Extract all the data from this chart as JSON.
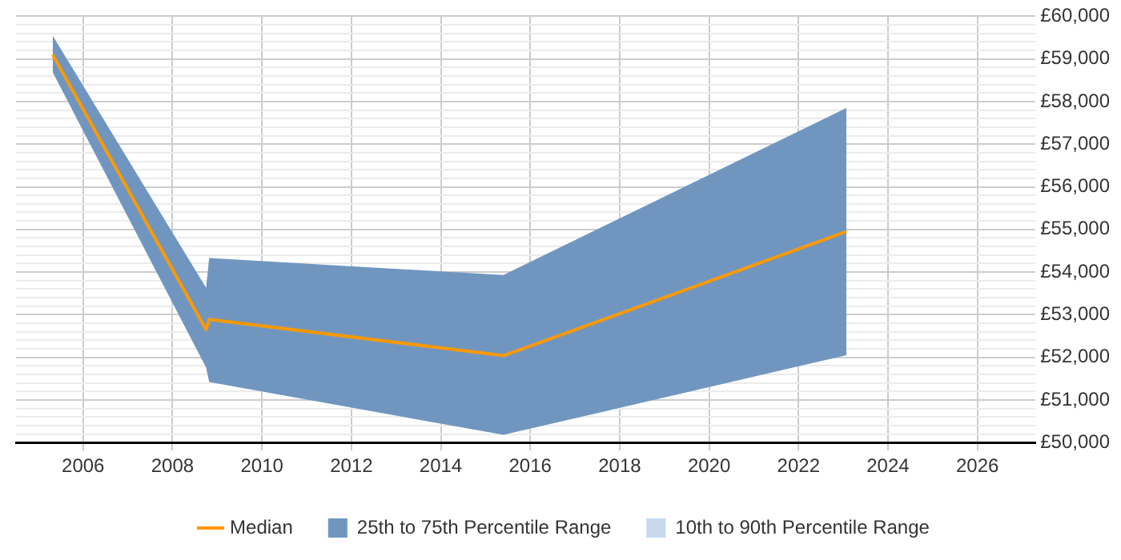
{
  "chart_data": {
    "type": "line",
    "x": [
      2005.32,
      2008.75,
      2008.82,
      2015.4,
      2023.07
    ],
    "series": [
      {
        "name": "Median",
        "color": "#ff9900",
        "values": [
          59100,
          52650,
          52890,
          52040,
          54950
        ]
      },
      {
        "name": "25th to 75th Percentile Range",
        "type": "area",
        "color": "#7096c0",
        "values": [
          null,
          null,
          null,
          null,
          null
        ],
        "lower": [
          58690,
          51760,
          51420,
          50180,
          52050
        ],
        "upper": [
          59550,
          53630,
          54330,
          53930,
          57850
        ]
      },
      {
        "name": "10th to 90th Percentile Range",
        "type": "area",
        "color": "#c6d7ee",
        "values": [
          null,
          null,
          null,
          null,
          null
        ],
        "lower": [
          null,
          null,
          null,
          null,
          null
        ],
        "upper": [
          null,
          null,
          null,
          null,
          null
        ]
      }
    ],
    "xlim": [
      2004.5,
      2027.3
    ],
    "xticks": [
      2006,
      2008,
      2010,
      2012,
      2014,
      2016,
      2018,
      2020,
      2022,
      2024,
      2026
    ],
    "ylim": [
      50000,
      60000
    ],
    "yticks": [
      {
        "value": 50000,
        "label": "£50,000"
      },
      {
        "value": 50200,
        "label": null
      },
      {
        "value": 50400,
        "label": null
      },
      {
        "value": 50600,
        "label": null
      },
      {
        "value": 50800,
        "label": null
      },
      {
        "value": 51000,
        "label": "£51,000"
      },
      {
        "value": 51200,
        "label": null
      },
      {
        "value": 51400,
        "label": null
      },
      {
        "value": 51600,
        "label": null
      },
      {
        "value": 51800,
        "label": null
      },
      {
        "value": 52000,
        "label": "£52,000"
      },
      {
        "value": 52200,
        "label": null
      },
      {
        "value": 52400,
        "label": null
      },
      {
        "value": 52600,
        "label": null
      },
      {
        "value": 52800,
        "label": null
      },
      {
        "value": 53000,
        "label": "£53,000"
      },
      {
        "value": 53200,
        "label": null
      },
      {
        "value": 53400,
        "label": null
      },
      {
        "value": 53600,
        "label": null
      },
      {
        "value": 53800,
        "label": null
      },
      {
        "value": 54000,
        "label": "£54,000"
      },
      {
        "value": 54200,
        "label": null
      },
      {
        "value": 54400,
        "label": null
      },
      {
        "value": 54600,
        "label": null
      },
      {
        "value": 54800,
        "label": null
      },
      {
        "value": 55000,
        "label": "£55,000"
      },
      {
        "value": 55200,
        "label": null
      },
      {
        "value": 55400,
        "label": null
      },
      {
        "value": 55600,
        "label": null
      },
      {
        "value": 55800,
        "label": null
      },
      {
        "value": 56000,
        "label": "£56,000"
      },
      {
        "value": 56200,
        "label": null
      },
      {
        "value": 56400,
        "label": null
      },
      {
        "value": 56600,
        "label": null
      },
      {
        "value": 56800,
        "label": null
      },
      {
        "value": 57000,
        "label": "£57,000"
      },
      {
        "value": 57200,
        "label": null
      },
      {
        "value": 57400,
        "label": null
      },
      {
        "value": 57600,
        "label": null
      },
      {
        "value": 57800,
        "label": null
      },
      {
        "value": 58000,
        "label": "£58,000"
      },
      {
        "value": 58200,
        "label": null
      },
      {
        "value": 58400,
        "label": null
      },
      {
        "value": 58600,
        "label": null
      },
      {
        "value": 58800,
        "label": null
      },
      {
        "value": 59000,
        "label": "£59,000"
      },
      {
        "value": 59200,
        "label": null
      },
      {
        "value": 59400,
        "label": null
      },
      {
        "value": 59600,
        "label": null
      },
      {
        "value": 59800,
        "label": null
      },
      {
        "value": 60000,
        "label": "£60,000"
      }
    ],
    "grid": true,
    "legend": "bottom",
    "marker": "none",
    "line_style": "solid"
  }
}
